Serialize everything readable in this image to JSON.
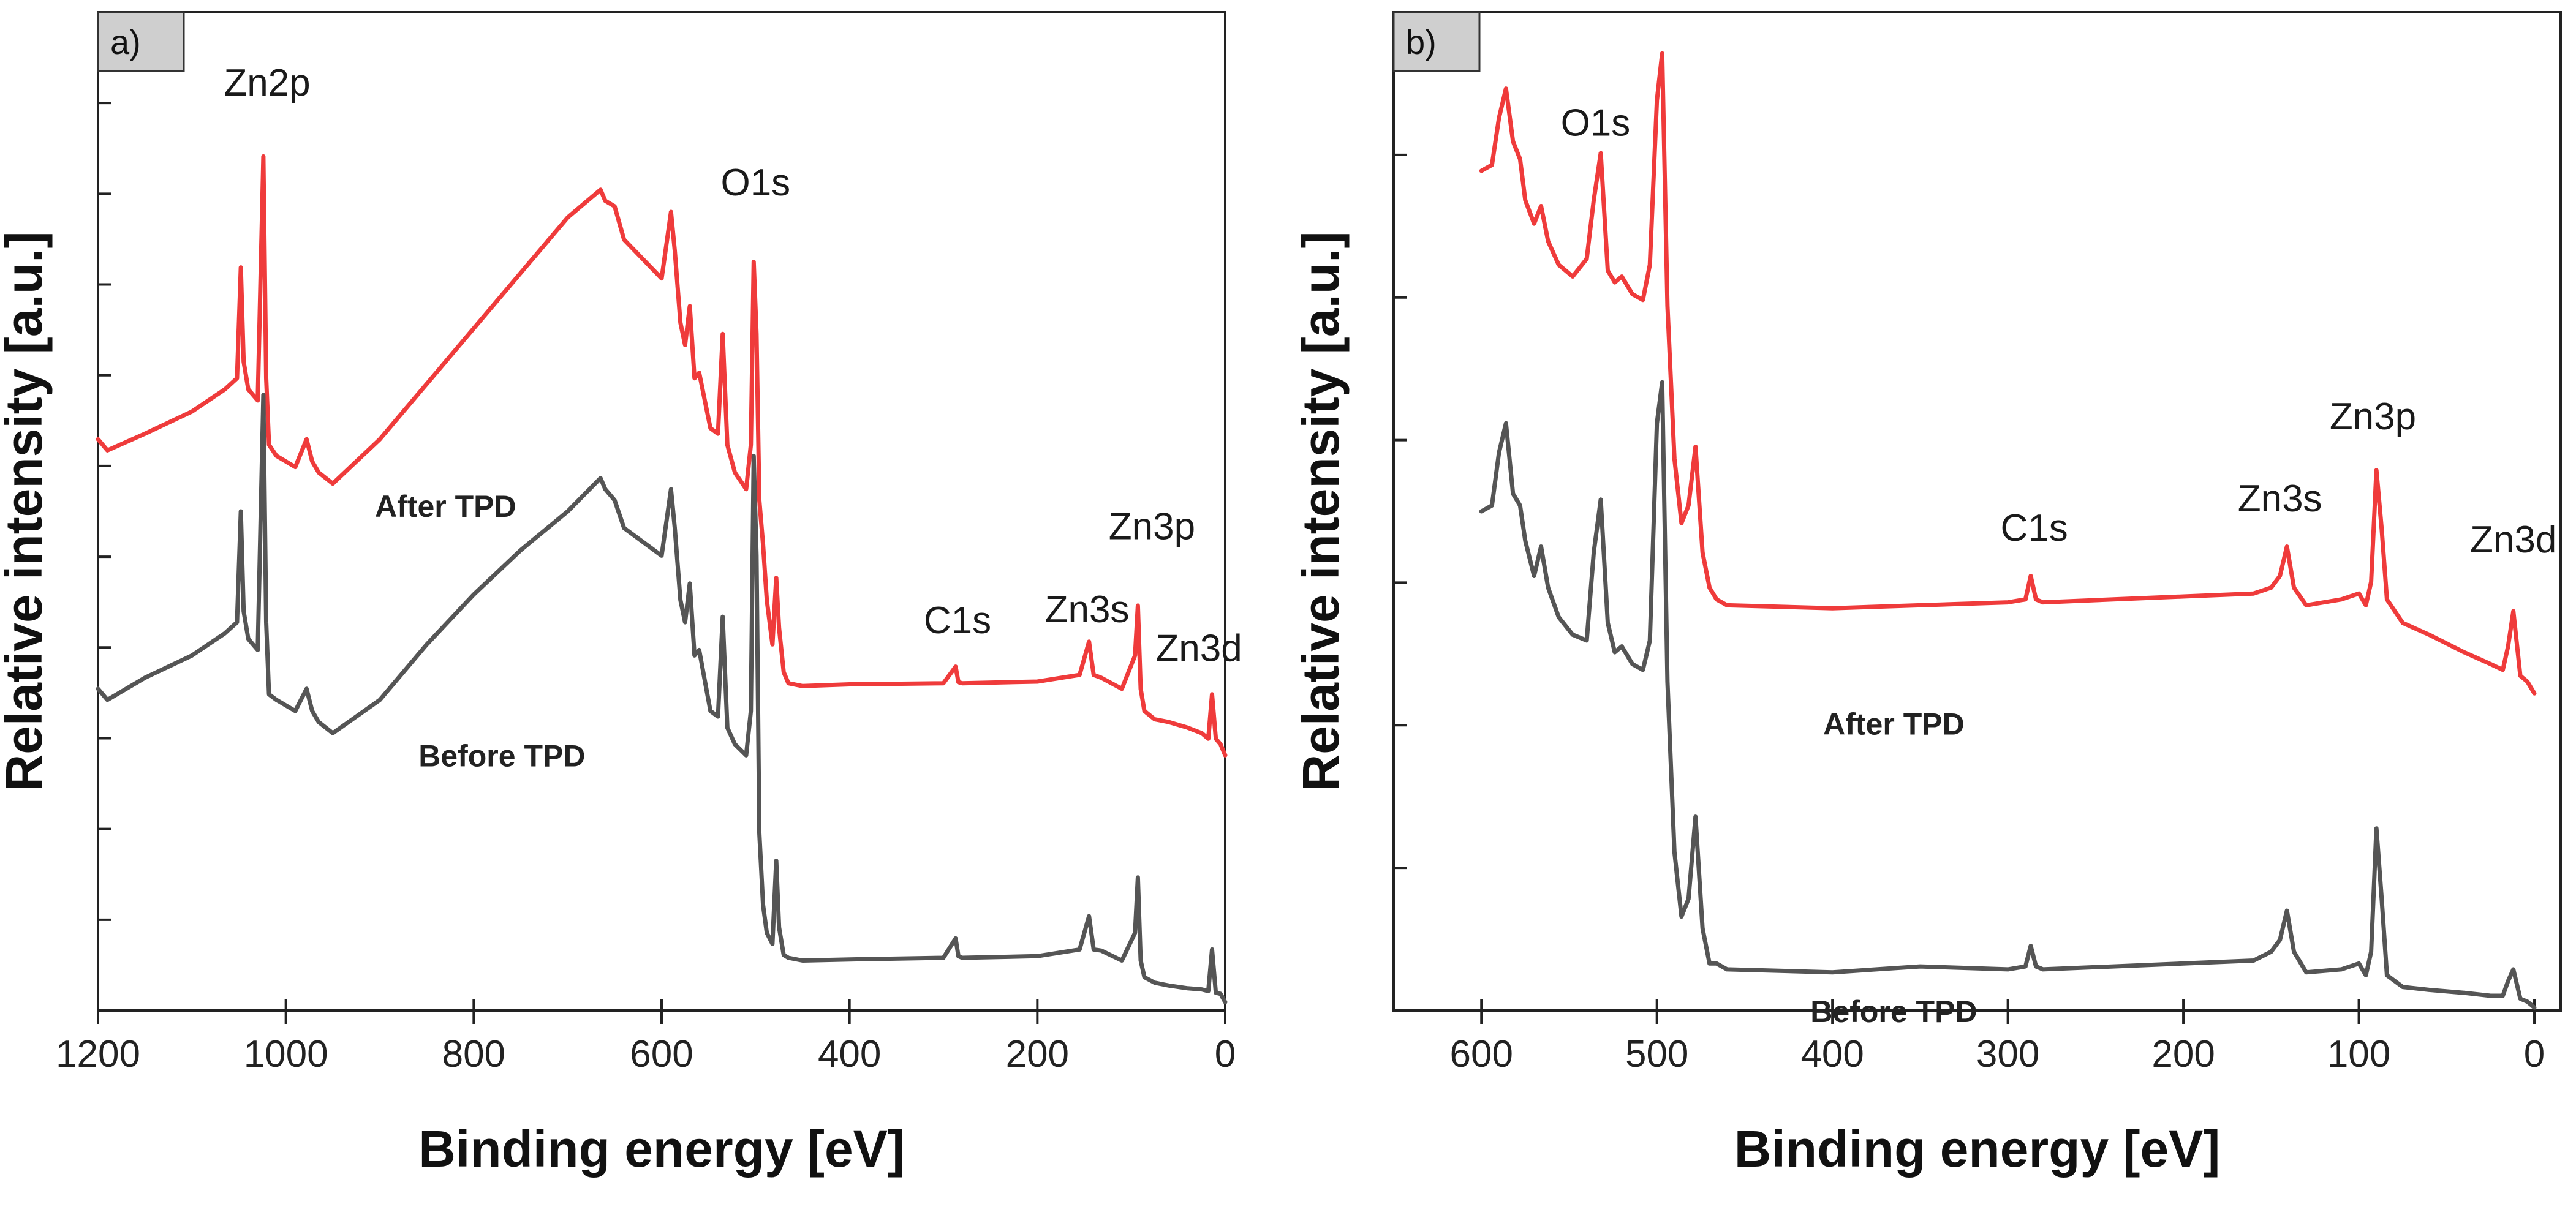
{
  "chart_data": [
    {
      "panel": "a)",
      "type": "line",
      "xlabel": "Binding energy [eV]",
      "ylabel": "Relative intensity [a.u.]",
      "xlim": [
        1200,
        0
      ],
      "ylim": [
        -0.02,
        1.78
      ],
      "x_ticks": [
        1200,
        1000,
        800,
        600,
        400,
        200,
        0
      ],
      "y_minor_ticks": 10,
      "x_reversed": true,
      "grid": false,
      "series": [
        {
          "name": "After TPD",
          "color": "#ef3b3b",
          "x": [
            1200,
            1190,
            1150,
            1100,
            1065,
            1052,
            1048,
            1045,
            1040,
            1030,
            1024,
            1021,
            1018,
            1010,
            990,
            978,
            972,
            965,
            950,
            900,
            850,
            800,
            750,
            700,
            665,
            660,
            650,
            640,
            600,
            590,
            586,
            580,
            575,
            570,
            565,
            560,
            548,
            540,
            535,
            530,
            522,
            510,
            505,
            502,
            499,
            496,
            492,
            488,
            482,
            478,
            475,
            470,
            465,
            450,
            400,
            300,
            287,
            284,
            280,
            200,
            155,
            145,
            140,
            132,
            110,
            96,
            93,
            90,
            86,
            75,
            60,
            40,
            25,
            18,
            14,
            10,
            5,
            0
          ],
          "y": [
            1.01,
            0.99,
            1.02,
            1.06,
            1.1,
            1.12,
            1.32,
            1.15,
            1.1,
            1.08,
            1.52,
            1.12,
            1.0,
            0.98,
            0.96,
            1.01,
            0.97,
            0.95,
            0.93,
            1.01,
            1.11,
            1.21,
            1.31,
            1.41,
            1.46,
            1.44,
            1.43,
            1.37,
            1.3,
            1.42,
            1.35,
            1.22,
            1.18,
            1.25,
            1.12,
            1.13,
            1.03,
            1.02,
            1.2,
            1.0,
            0.95,
            0.92,
            1.0,
            1.33,
            1.2,
            0.9,
            0.82,
            0.72,
            0.64,
            0.76,
            0.67,
            0.59,
            0.57,
            0.565,
            0.568,
            0.57,
            0.6,
            0.572,
            0.57,
            0.573,
            0.585,
            0.645,
            0.585,
            0.58,
            0.56,
            0.62,
            0.71,
            0.56,
            0.52,
            0.505,
            0.5,
            0.49,
            0.48,
            0.47,
            0.55,
            0.47,
            0.46,
            0.44
          ]
        },
        {
          "name": "Before TPD",
          "color": "#555555",
          "x": [
            1200,
            1190,
            1150,
            1100,
            1065,
            1052,
            1048,
            1045,
            1040,
            1030,
            1024,
            1021,
            1018,
            1010,
            990,
            978,
            972,
            965,
            950,
            900,
            850,
            800,
            750,
            700,
            665,
            660,
            650,
            640,
            600,
            590,
            586,
            580,
            575,
            570,
            565,
            560,
            548,
            540,
            535,
            530,
            522,
            510,
            505,
            502,
            499,
            496,
            492,
            488,
            482,
            478,
            475,
            470,
            465,
            450,
            400,
            300,
            287,
            284,
            280,
            200,
            155,
            145,
            140,
            132,
            110,
            96,
            93,
            90,
            86,
            75,
            60,
            40,
            25,
            18,
            14,
            10,
            5,
            0
          ],
          "y": [
            0.56,
            0.54,
            0.58,
            0.62,
            0.66,
            0.68,
            0.88,
            0.7,
            0.65,
            0.63,
            1.09,
            0.68,
            0.55,
            0.54,
            0.52,
            0.56,
            0.52,
            0.5,
            0.48,
            0.54,
            0.64,
            0.73,
            0.81,
            0.88,
            0.94,
            0.92,
            0.9,
            0.85,
            0.8,
            0.92,
            0.85,
            0.72,
            0.68,
            0.75,
            0.62,
            0.63,
            0.52,
            0.51,
            0.69,
            0.49,
            0.46,
            0.44,
            0.52,
            0.98,
            0.8,
            0.3,
            0.17,
            0.12,
            0.1,
            0.25,
            0.13,
            0.08,
            0.075,
            0.07,
            0.072,
            0.075,
            0.11,
            0.078,
            0.075,
            0.078,
            0.09,
            0.15,
            0.09,
            0.088,
            0.07,
            0.12,
            0.22,
            0.07,
            0.04,
            0.03,
            0.025,
            0.02,
            0.018,
            0.015,
            0.09,
            0.012,
            0.01,
            -0.005
          ]
        }
      ],
      "annotations": [
        {
          "text": "Zn2p",
          "x": 1020,
          "y": 1.63
        },
        {
          "text": "O1s",
          "x": 500,
          "y": 1.45
        },
        {
          "text": "C1s",
          "x": 285,
          "y": 0.66
        },
        {
          "text": "Zn3s",
          "x": 147,
          "y": 0.68
        },
        {
          "text": "Zn3p",
          "x": 78,
          "y": 0.83
        },
        {
          "text": "Zn3d",
          "x": 28,
          "y": 0.61
        },
        {
          "text": "After TPD",
          "x": 830,
          "y": 0.87
        },
        {
          "text": "Before TPD",
          "x": 770,
          "y": 0.42
        }
      ]
    },
    {
      "panel": "b)",
      "type": "line",
      "xlabel": "Binding energy [eV]",
      "ylabel": "Relative intensity [a.u.]",
      "xlim": [
        650,
        -15
      ],
      "ylim": [
        0.0,
        1.7
      ],
      "x_ticks": [
        600,
        500,
        400,
        300,
        200,
        100,
        0
      ],
      "y_minor_ticks": 6,
      "x_reversed": true,
      "grid": false,
      "series": [
        {
          "name": "After TPD",
          "color": "#ef3b3b",
          "x": [
            600,
            594,
            590,
            586,
            582,
            578,
            575,
            570,
            566,
            562,
            556,
            548,
            540,
            536,
            532,
            528,
            524,
            520,
            514,
            508,
            504,
            500,
            497,
            494,
            490,
            486,
            482,
            478,
            474,
            470,
            466,
            460,
            400,
            350,
            300,
            290,
            287,
            284,
            280,
            200,
            160,
            150,
            145,
            141,
            137,
            130,
            110,
            100,
            96,
            93,
            90,
            87,
            84,
            75,
            60,
            40,
            25,
            18,
            15,
            12,
            8,
            4,
            0
          ],
          "y": [
            1.43,
            1.44,
            1.52,
            1.57,
            1.48,
            1.45,
            1.38,
            1.34,
            1.37,
            1.31,
            1.27,
            1.25,
            1.28,
            1.38,
            1.46,
            1.26,
            1.24,
            1.25,
            1.22,
            1.21,
            1.27,
            1.55,
            1.63,
            1.2,
            0.94,
            0.83,
            0.86,
            0.96,
            0.78,
            0.72,
            0.7,
            0.69,
            0.685,
            0.69,
            0.695,
            0.7,
            0.74,
            0.7,
            0.695,
            0.705,
            0.71,
            0.72,
            0.74,
            0.79,
            0.72,
            0.69,
            0.7,
            0.71,
            0.69,
            0.73,
            0.92,
            0.82,
            0.7,
            0.66,
            0.64,
            0.61,
            0.59,
            0.58,
            0.62,
            0.68,
            0.57,
            0.56,
            0.54
          ]
        },
        {
          "name": "Before TPD",
          "color": "#555555",
          "x": [
            600,
            594,
            590,
            586,
            582,
            578,
            575,
            570,
            566,
            562,
            556,
            548,
            540,
            536,
            532,
            528,
            524,
            520,
            514,
            508,
            504,
            500,
            497,
            494,
            490,
            486,
            482,
            478,
            474,
            470,
            466,
            460,
            400,
            350,
            300,
            290,
            287,
            284,
            280,
            200,
            160,
            150,
            145,
            141,
            137,
            130,
            110,
            100,
            96,
            93,
            90,
            87,
            84,
            75,
            60,
            40,
            25,
            18,
            15,
            12,
            8,
            4,
            0
          ],
          "y": [
            0.85,
            0.86,
            0.95,
            1.0,
            0.88,
            0.86,
            0.8,
            0.74,
            0.79,
            0.72,
            0.67,
            0.64,
            0.63,
            0.78,
            0.87,
            0.66,
            0.61,
            0.62,
            0.59,
            0.58,
            0.63,
            1.0,
            1.07,
            0.56,
            0.27,
            0.16,
            0.19,
            0.33,
            0.14,
            0.08,
            0.08,
            0.07,
            0.065,
            0.075,
            0.07,
            0.075,
            0.11,
            0.075,
            0.07,
            0.08,
            0.085,
            0.1,
            0.12,
            0.17,
            0.1,
            0.065,
            0.07,
            0.08,
            0.06,
            0.1,
            0.31,
            0.19,
            0.06,
            0.04,
            0.035,
            0.03,
            0.025,
            0.025,
            0.05,
            0.07,
            0.02,
            0.015,
            0.005
          ]
        }
      ],
      "annotations": [
        {
          "text": "O1s",
          "x": 535,
          "y": 1.49
        },
        {
          "text": "C1s",
          "x": 285,
          "y": 0.8
        },
        {
          "text": "Zn3s",
          "x": 145,
          "y": 0.85
        },
        {
          "text": "Zn3p",
          "x": 92,
          "y": 0.99
        },
        {
          "text": "Zn3d",
          "x": 12,
          "y": 0.78
        },
        {
          "text": "After TPD",
          "x": 365,
          "y": 0.47
        },
        {
          "text": "Before TPD",
          "x": 365,
          "y": -0.02
        }
      ]
    }
  ]
}
